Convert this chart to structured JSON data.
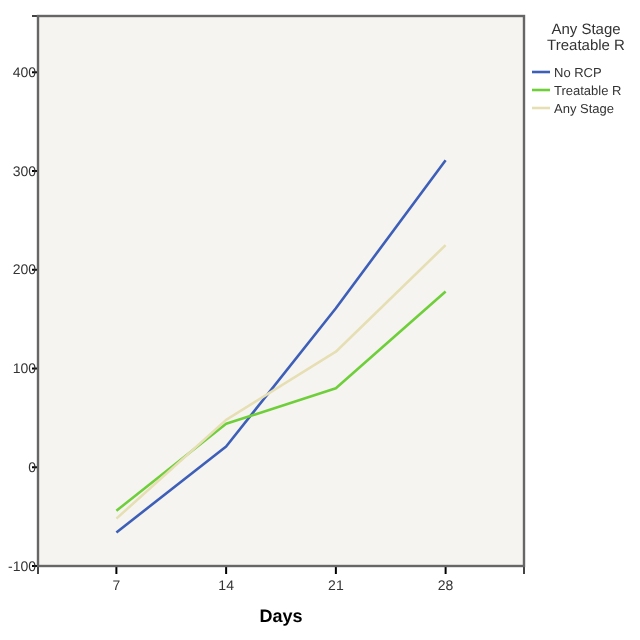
{
  "chart_data": {
    "type": "line",
    "xlabel": "Days",
    "legend_title": "Any Stage\nTreatable R",
    "legend": "top right",
    "x": [
      7,
      14,
      21,
      28
    ],
    "xlim": [
      2,
      33
    ],
    "xticks": [
      7,
      14,
      21,
      28
    ],
    "ylim": [
      -100,
      457
    ],
    "yticks": [
      -100,
      0,
      100,
      200,
      300,
      400
    ],
    "grid": false,
    "series": [
      {
        "name": "No RCP",
        "color": "#3d5fb8",
        "values": [
          -66,
          21,
          161,
          311
        ]
      },
      {
        "name": "Treatable R",
        "color": "#6fcf3a",
        "values": [
          -44,
          44,
          80,
          178
        ]
      },
      {
        "name": "Any Stage",
        "color": "#e6dfb4",
        "values": [
          -52,
          48,
          117,
          225
        ]
      }
    ]
  }
}
